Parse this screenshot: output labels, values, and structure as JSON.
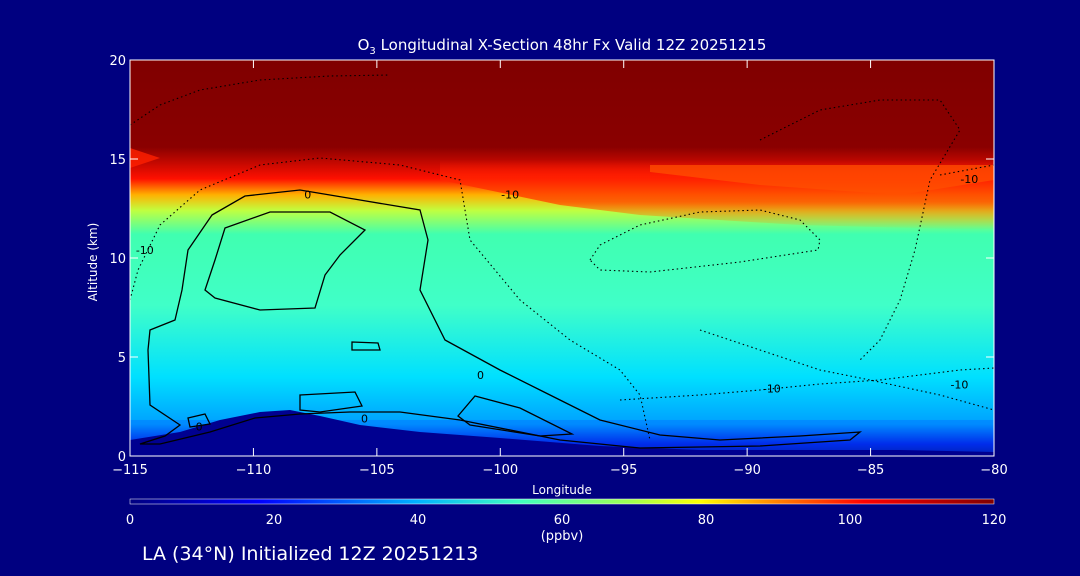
{
  "chart_data": {
    "type": "heatmap",
    "title_prefix": "O",
    "title_subscript": "3",
    "title_rest": " Longitudinal X-Section 48hr  Fx Valid 12Z 20251215",
    "xlabel": "Longitude",
    "ylabel": "Altitude (km)",
    "xlim": [
      -115,
      -80
    ],
    "ylim": [
      0,
      20
    ],
    "xticks": [
      "−115",
      "−110",
      "−105",
      "−100",
      "−95",
      "−90",
      "−85",
      "−80"
    ],
    "xtick_values": [
      -115,
      -110,
      -105,
      -100,
      -95,
      -90,
      -85,
      -80
    ],
    "yticks": [
      "0",
      "5",
      "10",
      "15",
      "20"
    ],
    "ytick_values": [
      0,
      5,
      10,
      15,
      20
    ],
    "colorbar": {
      "label": "(ppbv)",
      "ticks": [
        "0",
        "20",
        "40",
        "60",
        "80",
        "100",
        "120"
      ],
      "tick_values": [
        0,
        20,
        40,
        60,
        80,
        100,
        120
      ],
      "range": [
        0,
        120
      ],
      "colors": [
        "#000080",
        "#0000ff",
        "#00b0ff",
        "#40ffc0",
        "#a0ff50",
        "#ffff00",
        "#ff8000",
        "#ff0000",
        "#800000"
      ]
    },
    "contour_labels": [
      {
        "text": "0",
        "lon": -107.8,
        "alt": 13.0
      },
      {
        "text": "-10",
        "lon": -114.4,
        "alt": 10.2
      },
      {
        "text": "-10",
        "lon": -99.6,
        "alt": 13.0
      },
      {
        "text": "-10",
        "lon": -89.0,
        "alt": 3.2
      },
      {
        "text": "-10",
        "lon": -81.4,
        "alt": 3.4
      },
      {
        "text": "-10",
        "lon": -81.0,
        "alt": 13.8
      },
      {
        "text": "0",
        "lon": -100.8,
        "alt": 3.9
      },
      {
        "text": "0",
        "lon": -112.2,
        "alt": 1.3
      },
      {
        "text": "0",
        "lon": -105.5,
        "alt": 1.7
      }
    ]
  },
  "footer": "LA (34°N) Initialized 12Z 20251213"
}
